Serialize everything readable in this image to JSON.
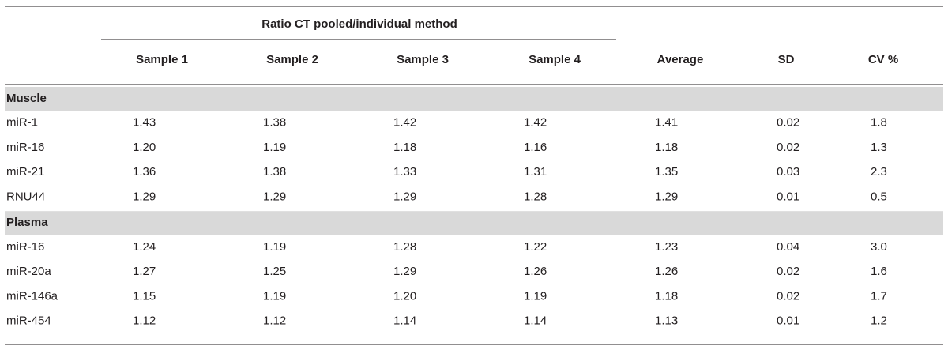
{
  "table": {
    "group_label": "Ratio CT pooled/individual method",
    "columns": [
      "Sample 1",
      "Sample 2",
      "Sample 3",
      "Sample 4",
      "Average",
      "SD",
      "CV %"
    ],
    "sections": [
      {
        "title": "Muscle",
        "rows": [
          [
            "miR-1",
            "1.43",
            "1.38",
            "1.42",
            "1.42",
            "1.41",
            "0.02",
            "1.8"
          ],
          [
            "miR-16",
            "1.20",
            "1.19",
            "1.18",
            "1.16",
            "1.18",
            "0.02",
            "1.3"
          ],
          [
            "miR-21",
            "1.36",
            "1.38",
            "1.33",
            "1.31",
            "1.35",
            "0.03",
            "2.3"
          ],
          [
            "RNU44",
            "1.29",
            "1.29",
            "1.29",
            "1.28",
            "1.29",
            "0.01",
            "0.5"
          ]
        ]
      },
      {
        "title": "Plasma",
        "rows": [
          [
            "miR-16",
            "1.24",
            "1.19",
            "1.28",
            "1.22",
            "1.23",
            "0.04",
            "3.0"
          ],
          [
            "miR-20a",
            "1.27",
            "1.25",
            "1.29",
            "1.26",
            "1.26",
            "0.02",
            "1.6"
          ],
          [
            "miR-146a",
            "1.15",
            "1.19",
            "1.20",
            "1.19",
            "1.18",
            "0.02",
            "1.7"
          ],
          [
            "miR-454",
            "1.12",
            "1.12",
            "1.14",
            "1.14",
            "1.13",
            "0.01",
            "1.2"
          ]
        ]
      }
    ]
  }
}
